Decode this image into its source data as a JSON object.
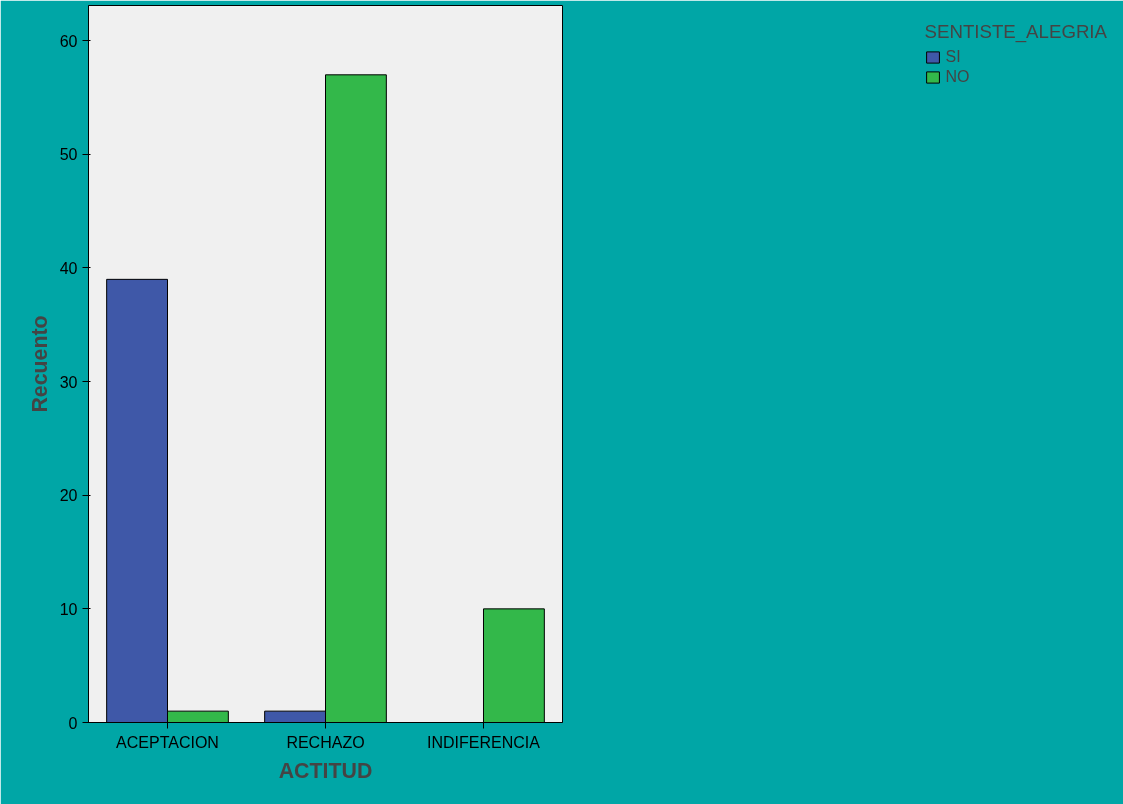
{
  "chart_data": {
    "type": "bar",
    "xlabel": "ACTITUD",
    "ylabel": "Recuento",
    "legend_title": "SENTISTE_ALEGRIA",
    "categories": [
      "ACEPTACION",
      "RECHAZO",
      "INDIFERENCIA"
    ],
    "series": [
      {
        "name": "SI",
        "color": "#3f58a8",
        "values": [
          39,
          1,
          null
        ]
      },
      {
        "name": "NO",
        "color": "#33b84a",
        "values": [
          1,
          57,
          10
        ]
      }
    ],
    "ylim": [
      0,
      63.1
    ],
    "yticks": [
      0,
      10,
      20,
      30,
      40,
      50,
      60
    ],
    "grid": false,
    "legend": "top right"
  }
}
